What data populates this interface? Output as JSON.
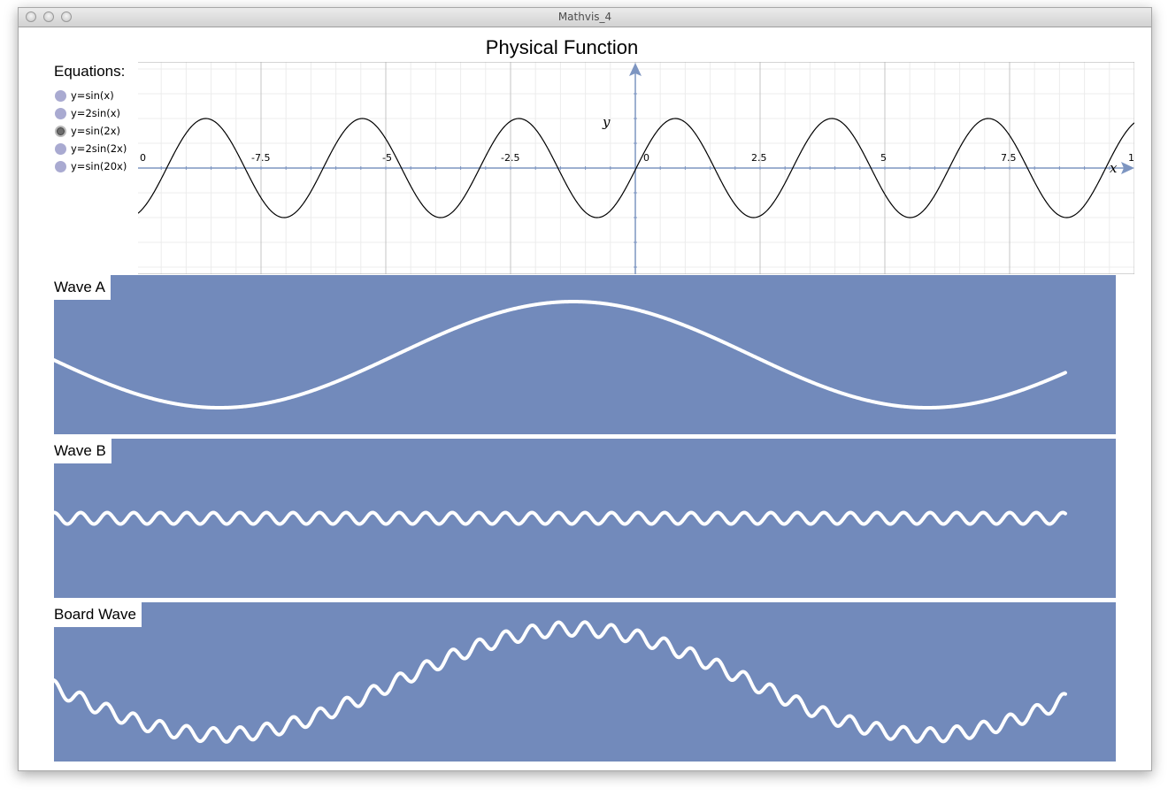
{
  "window": {
    "title": "Mathvis_4"
  },
  "graph": {
    "title": "Physical Function",
    "x_axis_label": "x",
    "y_axis_label": "y",
    "x_tick_labels": [
      "0",
      "-7.5",
      "-5",
      "-2.5",
      "0",
      "2.5",
      "5",
      "7.5",
      "1"
    ],
    "selected_equation": "y=sin(2x)"
  },
  "equations": {
    "label": "Equations:",
    "items": [
      "y=sin(x)",
      "y=2sin(x)",
      "y=sin(2x)",
      "y=2sin(2x)",
      "y=sin(20x)"
    ]
  },
  "waves": {
    "a_label": "Wave A",
    "b_label": "Wave B",
    "board_label": "Board Wave",
    "color": "#728abb",
    "line_color": "#ffffff"
  },
  "chart_data": {
    "type": "line",
    "title": "Physical Function",
    "xlabel": "x",
    "ylabel": "y",
    "xlim": [
      -10,
      10
    ],
    "series": [
      {
        "name": "y=sin(2x)",
        "function": "sin(2x)"
      }
    ]
  }
}
